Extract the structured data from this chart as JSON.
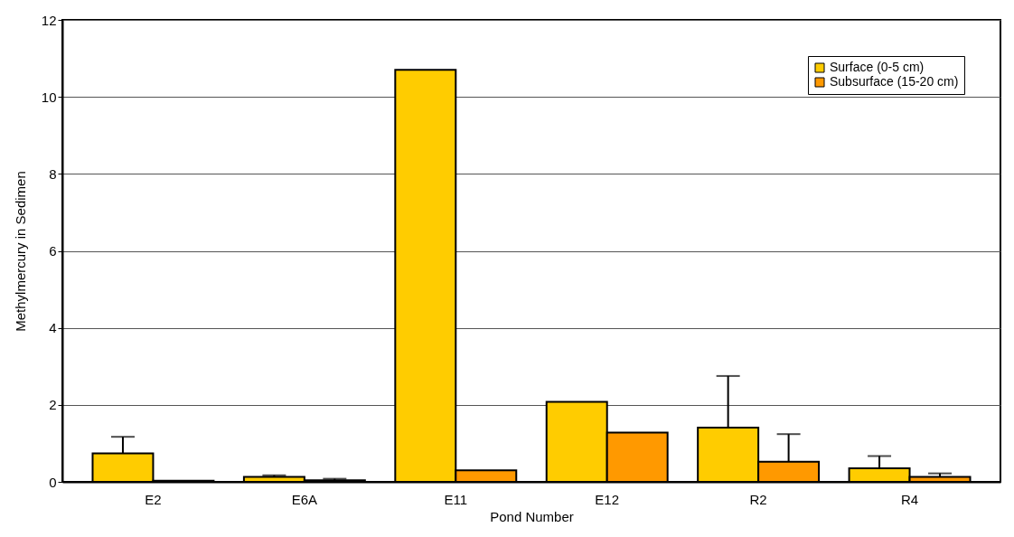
{
  "chart_data": {
    "type": "bar",
    "xlabel": "Pond Number",
    "ylabel": "Methylmercury in Sedimen",
    "categories": [
      "E2",
      "E6A",
      "E11",
      "E12",
      "R2",
      "R4"
    ],
    "series": [
      {
        "name": "Surface (0-5 cm)",
        "color": "#ffcc00",
        "values": [
          0.74,
          0.13,
          10.7,
          2.08,
          1.41,
          0.35
        ],
        "errors": [
          [
            0.74,
            1.17
          ],
          [
            0.13,
            0.17
          ],
          null,
          null,
          [
            1.41,
            2.75
          ],
          [
            0.35,
            0.67
          ]
        ]
      },
      {
        "name": "Subsurface (15-20 cm)",
        "color": "#ff9900",
        "values": [
          0.03,
          0.04,
          0.3,
          1.28,
          0.52,
          0.13
        ],
        "errors": [
          null,
          [
            0.04,
            0.08
          ],
          null,
          null,
          [
            0.52,
            1.24
          ],
          [
            0.13,
            0.22
          ]
        ]
      }
    ],
    "ylim": [
      0,
      12
    ],
    "yticks": [
      0,
      2,
      4,
      6,
      8,
      10,
      12
    ],
    "grid": "y",
    "legend": "top right"
  }
}
